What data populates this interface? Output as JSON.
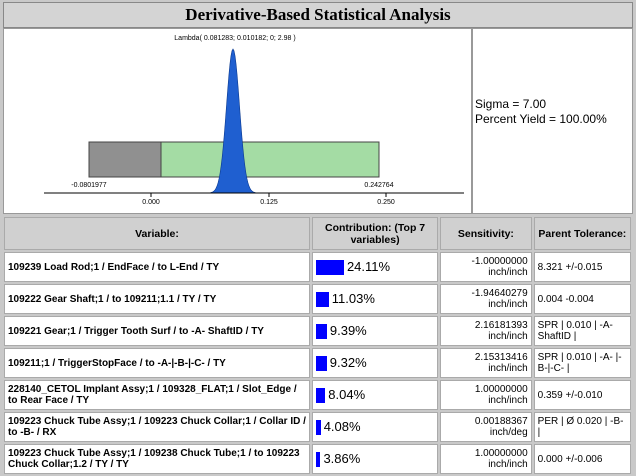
{
  "header": {
    "title": "Derivative-Based Statistical Analysis"
  },
  "plot": {
    "lambda_label": "Lambda( 0.081283; 0.010182; 0; 2.98 )",
    "lower_limit": "-0.0801977",
    "upper_limit": "0.242764",
    "axis_labels": [
      "0.000",
      "0.125",
      "0.250"
    ]
  },
  "stats": {
    "sigma": "Sigma = 7.00",
    "yield": "Percent Yield = 100.00%"
  },
  "table": {
    "headers": [
      "Variable:",
      "Contribution: (Top 7 variables)",
      "Sensitivity:",
      "Parent Tolerance:"
    ],
    "rows": [
      {
        "variable": "109239 Load Rod;1 / EndFace / to L-End / TY",
        "contribution": 24.11,
        "contribution_label": "24.11%",
        "sensitivity": "-1.00000000 inch/inch",
        "tolerance": "8.321 +/-0.015"
      },
      {
        "variable": "109222 Gear Shaft;1 / to 109211;1.1 / TY / TY",
        "contribution": 11.03,
        "contribution_label": "11.03%",
        "sensitivity": "-1.94640279 inch/inch",
        "tolerance": "0.004 -0.004"
      },
      {
        "variable": "109221 Gear;1 / Trigger Tooth Surf / to -A- ShaftID / TY",
        "contribution": 9.39,
        "contribution_label": "9.39%",
        "sensitivity": "2.16181393 inch/inch",
        "tolerance": "SPR | 0.010 | -A- ShaftID |"
      },
      {
        "variable": "109211;1 / TriggerStopFace / to -A-|-B-|-C- / TY",
        "contribution": 9.32,
        "contribution_label": "9.32%",
        "sensitivity": "2.15313416 inch/inch",
        "tolerance": "SPR | 0.010 | -A- |-B-|-C- |"
      },
      {
        "variable": "228140_CETOL Implant Assy;1 / 109328_FLAT;1 / Slot_Edge / to Rear Face / TY",
        "contribution": 8.04,
        "contribution_label": "8.04%",
        "sensitivity": "1.00000000 inch/inch",
        "tolerance": "0.359 +/-0.010"
      },
      {
        "variable": "109223 Chuck Tube Assy;1 / 109223 Chuck Collar;1 / Collar ID / to -B- / RX",
        "contribution": 4.08,
        "contribution_label": "4.08%",
        "sensitivity": "0.00188367 inch/deg",
        "tolerance": "PER | Ø 0.020 | -B- |"
      },
      {
        "variable": "109223 Chuck Tube Assy;1 / 109238 Chuck Tube;1 / to 109223 Chuck Collar;1.2 / TY / TY",
        "contribution": 3.86,
        "contribution_label": "3.86%",
        "sensitivity": "1.00000000 inch/inch",
        "tolerance": "0.000 +/-0.006"
      }
    ]
  }
}
